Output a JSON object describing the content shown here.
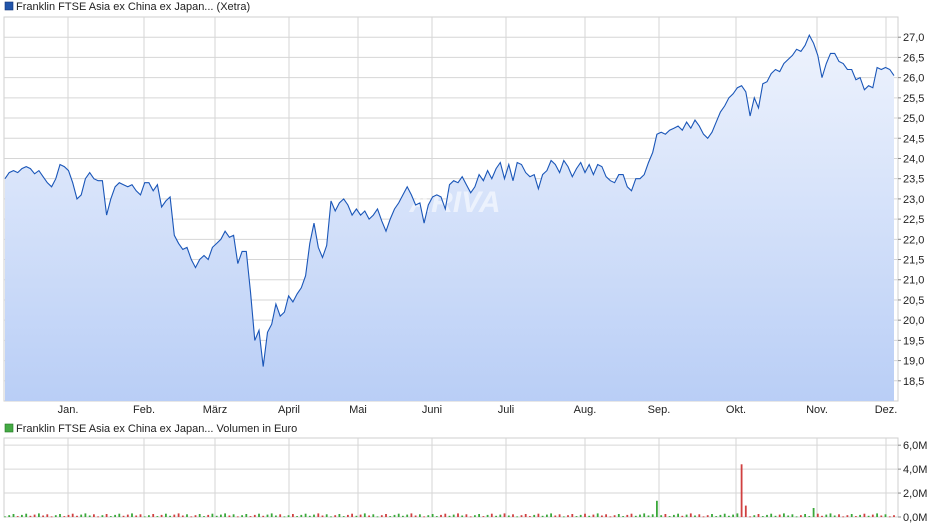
{
  "price_panel": {
    "legend_label": "Franklin FTSE Asia ex China ex Japan... (Xetra)",
    "legend_color": "#2255aa"
  },
  "volume_panel": {
    "legend_label": "Franklin FTSE Asia ex China ex Japan... Volumen in Euro",
    "legend_color": "#44aa44"
  },
  "watermark": "ARIVA",
  "colors": {
    "price_line": "#1a56b8",
    "area_top": "#eef3fd",
    "area_bottom": "#b9cef6",
    "grid": "#d6d6d6",
    "volume_up": "#3aa83a",
    "volume_down": "#d04040"
  },
  "chart_data": [
    {
      "type": "area",
      "title": "Franklin FTSE Asia ex China ex Japan... (Xetra)",
      "x_tick_labels": [
        "Jan.",
        "Feb.",
        "März",
        "April",
        "Mai",
        "Juni",
        "Juli",
        "Aug.",
        "Sep.",
        "Okt.",
        "Nov.",
        "Dez."
      ],
      "y_ticks": [
        18.5,
        19.0,
        19.5,
        20.0,
        20.5,
        21.0,
        21.5,
        22.0,
        22.5,
        23.0,
        23.5,
        24.0,
        24.5,
        25.0,
        25.5,
        26.0,
        26.5,
        27.0
      ],
      "y_tick_labels": [
        "18,5",
        "19,0",
        "19,5",
        "20,0",
        "20,5",
        "21,0",
        "21,5",
        "22,0",
        "22,5",
        "23,0",
        "23,5",
        "24,0",
        "24,5",
        "25,0",
        "25,5",
        "26,0",
        "26,5",
        "27,0"
      ],
      "ylim": [
        18.0,
        27.5
      ],
      "grid": true,
      "series": [
        {
          "values": [
            23.5,
            23.65,
            23.7,
            23.65,
            23.75,
            23.8,
            23.75,
            23.62,
            23.7,
            23.55,
            23.4,
            23.3,
            23.5,
            23.85,
            23.8,
            23.7,
            23.4,
            23.0,
            23.1,
            23.5,
            23.65,
            23.5,
            23.45,
            23.45,
            22.6,
            23.0,
            23.3,
            23.4,
            23.35,
            23.3,
            23.35,
            23.2,
            23.1,
            23.4,
            23.4,
            23.2,
            23.35,
            22.8,
            22.95,
            23.05,
            22.1,
            21.9,
            21.75,
            21.8,
            21.5,
            21.3,
            21.5,
            21.6,
            21.5,
            21.8,
            21.9,
            22.0,
            22.2,
            22.05,
            22.1,
            21.4,
            21.7,
            21.7,
            20.7,
            19.5,
            19.75,
            18.85,
            19.7,
            19.9,
            20.4,
            20.1,
            20.2,
            20.6,
            20.45,
            20.65,
            20.8,
            21.1,
            21.9,
            22.4,
            21.8,
            21.55,
            21.85,
            22.95,
            22.7,
            22.9,
            23.0,
            22.85,
            22.6,
            22.75,
            22.6,
            22.7,
            22.5,
            22.6,
            22.75,
            22.45,
            22.2,
            22.5,
            22.75,
            22.9,
            23.1,
            23.3,
            23.1,
            22.85,
            22.9,
            22.4,
            22.85,
            23.05,
            23.1,
            23.05,
            22.75,
            23.35,
            23.45,
            23.4,
            23.55,
            23.35,
            23.15,
            23.3,
            23.6,
            23.45,
            23.7,
            23.5,
            23.75,
            23.9,
            23.5,
            23.85,
            23.45,
            23.9,
            23.85,
            23.65,
            23.55,
            23.6,
            23.25,
            23.6,
            23.7,
            23.95,
            23.85,
            23.65,
            23.95,
            23.8,
            23.55,
            23.75,
            23.9,
            23.65,
            23.85,
            23.6,
            23.85,
            23.8,
            23.55,
            23.45,
            23.4,
            23.6,
            23.6,
            23.3,
            23.2,
            23.5,
            23.5,
            23.6,
            23.9,
            24.15,
            24.6,
            24.65,
            24.6,
            24.7,
            24.75,
            24.8,
            24.7,
            24.9,
            24.75,
            24.95,
            24.8,
            24.6,
            24.5,
            24.65,
            24.9,
            25.15,
            25.3,
            25.5,
            25.6,
            25.75,
            25.8,
            25.65,
            25.05,
            25.5,
            25.25,
            25.85,
            25.9,
            26.1,
            26.2,
            26.15,
            26.35,
            26.45,
            26.55,
            26.7,
            26.65,
            26.8,
            27.05,
            26.85,
            26.55,
            26.0,
            26.35,
            26.6,
            26.6,
            26.4,
            26.35,
            26.2,
            26.2,
            25.95,
            26.0,
            25.7,
            25.8,
            25.75,
            26.25,
            26.2,
            26.25,
            26.2,
            26.05
          ]
        }
      ]
    },
    {
      "type": "bar",
      "title": "Franklin FTSE Asia ex China ex Japan... Volumen in Euro",
      "y_tick_labels": [
        "0,0M",
        "2,0M",
        "4,0M",
        "6,0M"
      ],
      "y_ticks": [
        0,
        2,
        4,
        6
      ],
      "ylim": [
        0,
        6.6
      ],
      "y_unit": "M",
      "grid": true,
      "spikes": [
        {
          "day": 154,
          "value": 1.35,
          "direction": "up"
        },
        {
          "day": 174,
          "value": 4.4,
          "direction": "down"
        },
        {
          "day": 175,
          "value": 0.95,
          "direction": "down"
        },
        {
          "day": 191,
          "value": 0.75,
          "direction": "up"
        },
        {
          "day": 215,
          "value": 1.05,
          "direction": "up"
        },
        {
          "day": 240,
          "value": 0.6,
          "direction": "up"
        }
      ]
    }
  ]
}
